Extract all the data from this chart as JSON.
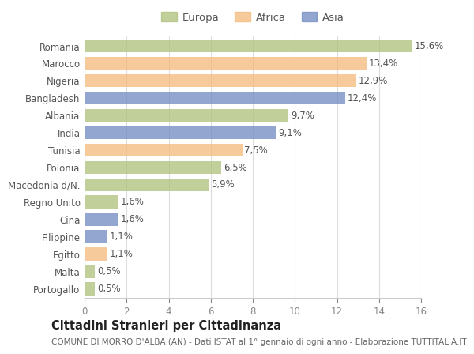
{
  "categories": [
    "Portogallo",
    "Malta",
    "Egitto",
    "Filippine",
    "Cina",
    "Regno Unito",
    "Macedonia d/N.",
    "Polonia",
    "Tunisia",
    "India",
    "Albania",
    "Bangladesh",
    "Nigeria",
    "Marocco",
    "Romania"
  ],
  "values": [
    0.5,
    0.5,
    1.1,
    1.1,
    1.6,
    1.6,
    5.9,
    6.5,
    7.5,
    9.1,
    9.7,
    12.4,
    12.9,
    13.4,
    15.6
  ],
  "colors": [
    "#adc07a",
    "#adc07a",
    "#f5b97a",
    "#6f89c0",
    "#6f89c0",
    "#adc07a",
    "#adc07a",
    "#adc07a",
    "#f5b97a",
    "#6f89c0",
    "#adc07a",
    "#6f89c0",
    "#f5b97a",
    "#f5b97a",
    "#adc07a"
  ],
  "labels": [
    "0,5%",
    "0,5%",
    "1,1%",
    "1,1%",
    "1,6%",
    "1,6%",
    "5,9%",
    "6,5%",
    "7,5%",
    "9,1%",
    "9,7%",
    "12,4%",
    "12,9%",
    "13,4%",
    "15,6%"
  ],
  "xlim": [
    0,
    16
  ],
  "xticks": [
    0,
    2,
    4,
    6,
    8,
    10,
    12,
    14,
    16
  ],
  "legend_labels": [
    "Europa",
    "Africa",
    "Asia"
  ],
  "legend_colors": [
    "#adc07a",
    "#f5b97a",
    "#6f89c0"
  ],
  "title": "Cittadini Stranieri per Cittadinanza",
  "subtitle": "COMUNE DI MORRO D'ALBA (AN) - Dati ISTAT al 1° gennaio di ogni anno - Elaborazione TUTTITALIA.IT",
  "plot_bg_color": "#ffffff",
  "fig_bg_color": "#ffffff",
  "bar_height": 0.75,
  "label_fontsize": 8.5,
  "tick_fontsize": 8.5,
  "title_fontsize": 10.5,
  "subtitle_fontsize": 7.5
}
